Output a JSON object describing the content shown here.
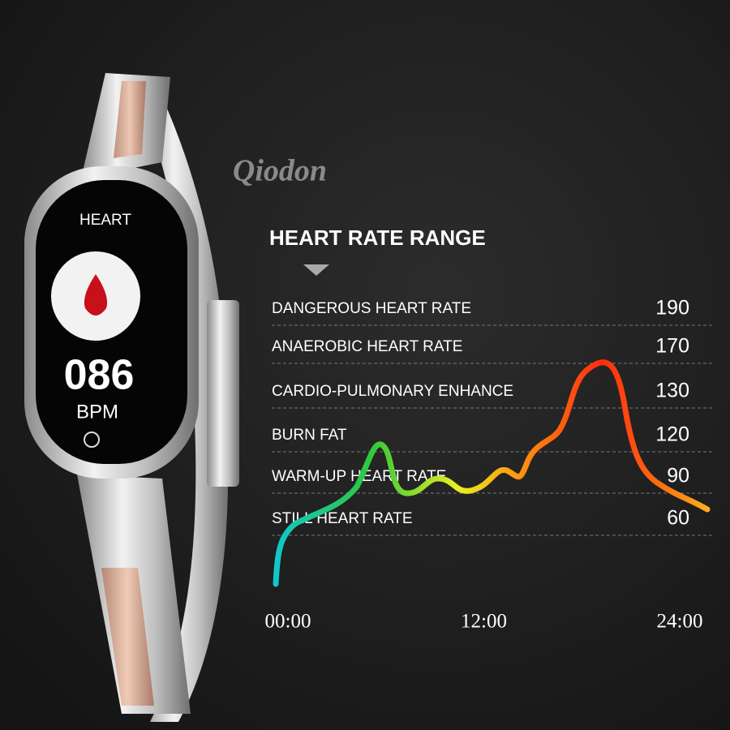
{
  "watermark": "Qiodon",
  "watch": {
    "mode": "HEART",
    "reading": "086",
    "unit": "BPM"
  },
  "panel": {
    "title": "HEART RATE RANGE",
    "zones": [
      {
        "label": "DANGEROUS HEART RATE",
        "value": 190
      },
      {
        "label": "ANAEROBIC HEART RATE",
        "value": 170
      },
      {
        "label": "CARDIO-PULMONARY ENHANCE",
        "value": 130
      },
      {
        "label": "BURN FAT",
        "value": 120
      },
      {
        "label": "WARM-UP HEART RATE",
        "value": 90
      },
      {
        "label": "STILL HEART RATE",
        "value": 60
      }
    ],
    "times": [
      "00:00",
      "12:00",
      "24:00"
    ]
  }
}
